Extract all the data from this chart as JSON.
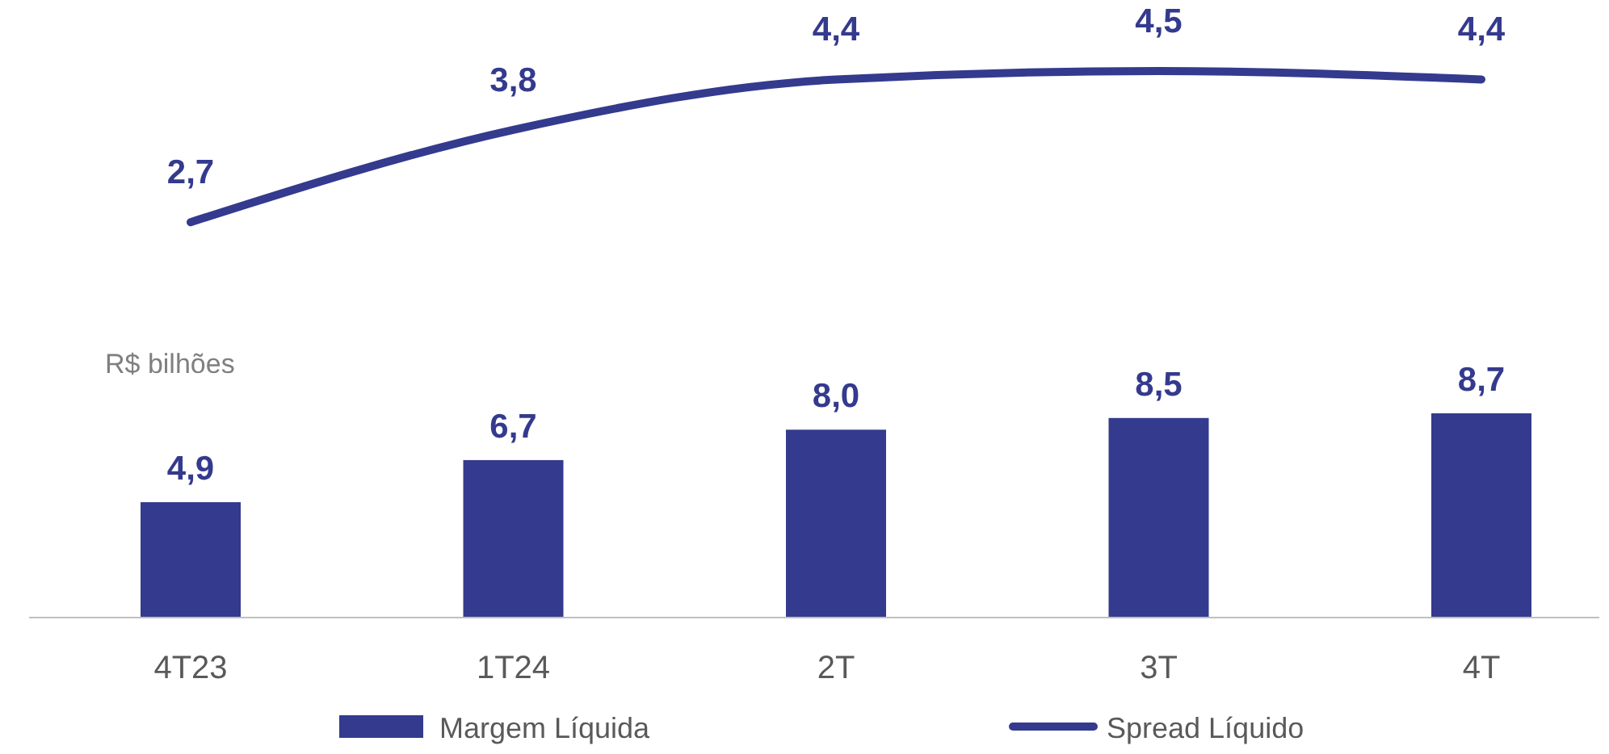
{
  "chart_data": [
    {
      "type": "line",
      "categories": [
        null,
        null,
        null,
        null,
        null
      ],
      "legend": "bottom",
      "series": [
        {
          "name": "Spread Líquido",
          "color": "#343a8d",
          "values": [
            2.7,
            3.8,
            4.4,
            4.5,
            4.4
          ],
          "value_labels": [
            "2,7",
            "3,8",
            "4,4",
            "4,5",
            "4,4"
          ]
        }
      ]
    },
    {
      "type": "bar",
      "categories": [
        "4T23",
        "1T24",
        "2T",
        "3T",
        "4T"
      ],
      "ylabel": "R$ bilhões",
      "legend": "bottom",
      "tick_labels": "x",
      "series": [
        {
          "name": "Margem Líquida",
          "color": "#343a8d",
          "values": [
            4.9,
            6.7,
            8.0,
            8.5,
            8.7
          ],
          "value_labels": [
            "4,9",
            "6,7",
            "8,0",
            "8,5",
            "8,7"
          ]
        }
      ]
    }
  ]
}
